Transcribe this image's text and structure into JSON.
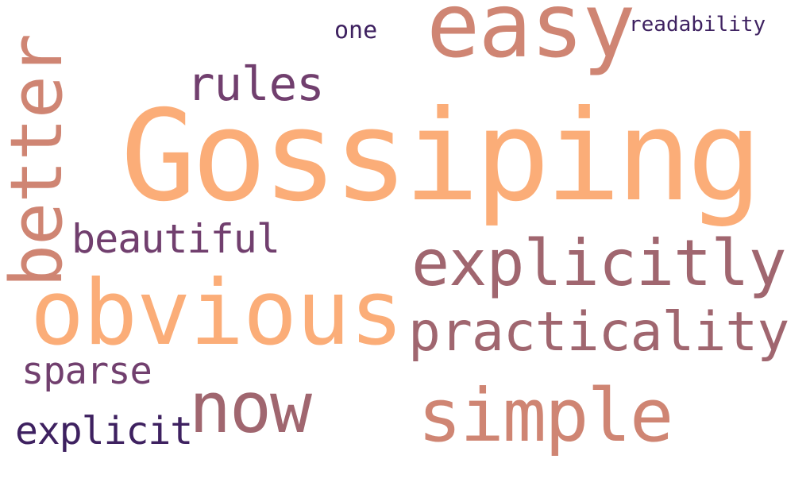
{
  "word_cloud": {
    "words": [
      {
        "text": "Gossiping",
        "color": "#fbad78"
      },
      {
        "text": "obvious",
        "color": "#fbad78"
      },
      {
        "text": "easy",
        "color": "#cf8573"
      },
      {
        "text": "better",
        "color": "#cf8573"
      },
      {
        "text": "simple",
        "color": "#cf8573"
      },
      {
        "text": "explicitly",
        "color": "#a0666f"
      },
      {
        "text": "practicality",
        "color": "#a0666f"
      },
      {
        "text": "now",
        "color": "#a0666f"
      },
      {
        "text": "rules",
        "color": "#713f6e"
      },
      {
        "text": "beautiful",
        "color": "#713f6e"
      },
      {
        "text": "sparse",
        "color": "#713f6e"
      },
      {
        "text": "explicit",
        "color": "#3e2160"
      },
      {
        "text": "one",
        "color": "#3e2160"
      },
      {
        "text": "readability",
        "color": "#3e2160"
      }
    ]
  }
}
